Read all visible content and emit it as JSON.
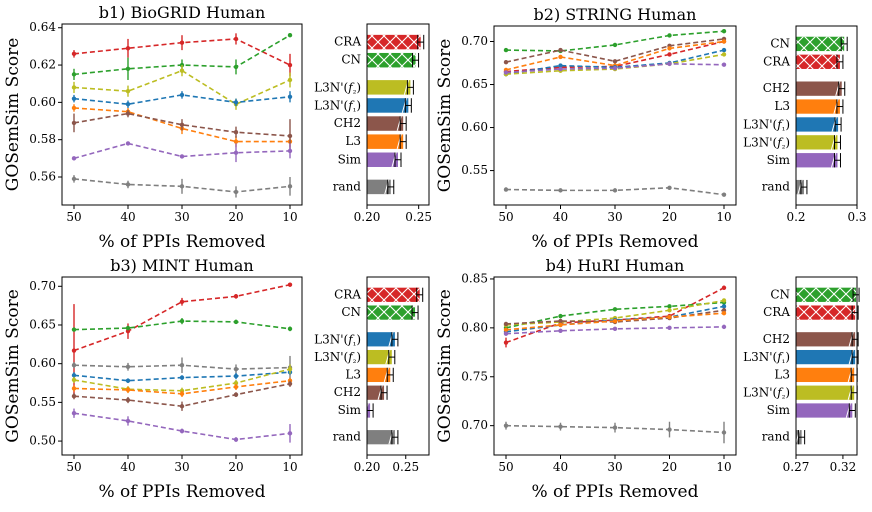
{
  "chart_data": [
    {
      "type": "line",
      "title": "b1) BioGRID Human",
      "xlabel": "% of PPIs Removed",
      "ylabel": "GOSemSim Score",
      "x": [
        50,
        40,
        30,
        20,
        10
      ],
      "x_ticks": [
        "50",
        "40",
        "30",
        "20",
        "10"
      ],
      "ylim": [
        0.545,
        0.642
      ],
      "y_ticks": [
        "0.56",
        "0.58",
        "0.60",
        "0.62",
        "0.64"
      ],
      "series": [
        {
          "color": "#d62728",
          "values": [
            0.626,
            0.629,
            0.632,
            0.634,
            0.62
          ],
          "err": [
            0.002,
            0.005,
            0.004,
            0.003,
            0.006
          ]
        },
        {
          "color": "#2ca02c",
          "values": [
            0.615,
            0.618,
            0.62,
            0.619,
            0.636
          ],
          "err": [
            0.003,
            0.006,
            0.003,
            0.004,
            0.001
          ]
        },
        {
          "color": "#bcbd22",
          "values": [
            0.608,
            0.606,
            0.617,
            0.599,
            0.612
          ],
          "err": [
            0.003,
            0.003,
            0.003,
            0.003,
            0.004
          ]
        },
        {
          "color": "#1f77b4",
          "values": [
            0.602,
            0.599,
            0.604,
            0.6,
            0.603
          ],
          "err": [
            0.002,
            0.002,
            0.002,
            0.002,
            0.003
          ]
        },
        {
          "color": "#ff7f0e",
          "values": [
            0.597,
            0.595,
            0.586,
            0.579,
            0.579
          ],
          "err": [
            0.002,
            0.002,
            0.003,
            0.003,
            0.003
          ]
        },
        {
          "color": "#8c564b",
          "values": [
            0.589,
            0.594,
            0.588,
            0.584,
            0.582
          ],
          "err": [
            0.005,
            0.002,
            0.003,
            0.003,
            0.009
          ]
        },
        {
          "color": "#9467bd",
          "values": [
            0.57,
            0.578,
            0.571,
            0.573,
            0.574
          ],
          "err": [
            0.001,
            0.001,
            0.001,
            0.005,
            0.004
          ]
        },
        {
          "color": "#7f7f7f",
          "values": [
            0.559,
            0.556,
            0.555,
            0.552,
            0.555
          ],
          "err": [
            0.002,
            0.002,
            0.004,
            0.003,
            0.005
          ]
        }
      ],
      "bar": {
        "labels": [
          "CRA",
          "CN",
          "L3N'(f₂)",
          "L3N'(f₁)",
          "CH2",
          "L3",
          "Sim",
          "rand"
        ],
        "label_parts": [
          [
            "CRA",
            ""
          ],
          [
            "CN",
            ""
          ],
          [
            "L3N'(",
            "f",
            "₂",
            ")"
          ],
          [
            "L3N'(",
            "f",
            "₁",
            ")"
          ],
          [
            "CH2",
            ""
          ],
          [
            "L3",
            ""
          ],
          [
            "Sim",
            ""
          ],
          [
            "rand",
            ""
          ]
        ],
        "values": [
          0.252,
          0.247,
          0.242,
          0.24,
          0.235,
          0.235,
          0.23,
          0.223
        ],
        "colors": [
          "#d62728",
          "#2ca02c",
          "#bcbd22",
          "#1f77b4",
          "#8c564b",
          "#ff7f0e",
          "#9467bd",
          "#7f7f7f"
        ],
        "xlim": [
          0.2,
          0.26
        ],
        "x_ticks": [
          "0.20",
          "0.25"
        ],
        "x_tick_values": [
          0.2,
          0.25
        ]
      }
    },
    {
      "type": "line",
      "title": "b2) STRING Human",
      "xlabel": "% of PPIs Removed",
      "ylabel": "GOSemSim Score",
      "x": [
        50,
        40,
        30,
        20,
        10
      ],
      "x_ticks": [
        "50",
        "40",
        "30",
        "20",
        "10"
      ],
      "ylim": [
        0.51,
        0.718
      ],
      "y_ticks": [
        "0.55",
        "0.60",
        "0.65",
        "0.70"
      ],
      "series": [
        {
          "color": "#2ca02c",
          "values": [
            0.69,
            0.689,
            0.696,
            0.707,
            0.712
          ],
          "err": [
            0.001,
            0.001,
            0.001,
            0.001,
            0.001
          ]
        },
        {
          "color": "#d62728",
          "values": [
            0.665,
            0.67,
            0.671,
            0.685,
            0.7
          ],
          "err": [
            0.001,
            0.001,
            0.001,
            0.001,
            0.001
          ]
        },
        {
          "color": "#8c564b",
          "values": [
            0.676,
            0.69,
            0.677,
            0.695,
            0.703
          ],
          "err": [
            0.001,
            0.001,
            0.001,
            0.001,
            0.001
          ]
        },
        {
          "color": "#ff7f0e",
          "values": [
            0.667,
            0.682,
            0.672,
            0.692,
            0.7
          ],
          "err": [
            0.001,
            0.001,
            0.001,
            0.001,
            0.001
          ]
        },
        {
          "color": "#1f77b4",
          "values": [
            0.662,
            0.672,
            0.67,
            0.675,
            0.69
          ],
          "err": [
            0.001,
            0.001,
            0.001,
            0.001,
            0.001
          ]
        },
        {
          "color": "#bcbd22",
          "values": [
            0.662,
            0.666,
            0.668,
            0.674,
            0.685
          ],
          "err": [
            0.001,
            0.001,
            0.001,
            0.001,
            0.001
          ]
        },
        {
          "color": "#9467bd",
          "values": [
            0.664,
            0.668,
            0.669,
            0.674,
            0.673
          ],
          "err": [
            0.001,
            0.001,
            0.001,
            0.001,
            0.001
          ]
        },
        {
          "color": "#7f7f7f",
          "values": [
            0.528,
            0.527,
            0.527,
            0.53,
            0.522
          ],
          "err": [
            0.001,
            0.001,
            0.001,
            0.001,
            0.002
          ]
        }
      ],
      "bar": {
        "labels": [
          "CN",
          "CRA",
          "CH2",
          "L3",
          "L3N'(f₁)",
          "L3N'(f₂)",
          "Sim",
          "rand"
        ],
        "label_parts": [
          [
            "CN",
            ""
          ],
          [
            "CRA",
            ""
          ],
          [
            "CH2",
            ""
          ],
          [
            "L3",
            ""
          ],
          [
            "L3N'(",
            "f",
            "₁",
            ")"
          ],
          [
            "L3N'(",
            "f",
            "₂",
            ")"
          ],
          [
            "Sim",
            ""
          ],
          [
            "rand",
            ""
          ]
        ],
        "values": [
          0.279,
          0.272,
          0.275,
          0.272,
          0.269,
          0.268,
          0.268,
          0.213
        ],
        "colors": [
          "#2ca02c",
          "#d62728",
          "#8c564b",
          "#ff7f0e",
          "#1f77b4",
          "#bcbd22",
          "#9467bd",
          "#7f7f7f"
        ],
        "xlim": [
          0.2,
          0.3
        ],
        "x_ticks": [
          "0.2",
          "0.3"
        ],
        "x_tick_values": [
          0.2,
          0.3
        ]
      }
    },
    {
      "type": "line",
      "title": "b3) MINT Human",
      "xlabel": "% of PPIs Removed",
      "ylabel": "GOSemSim Score",
      "x": [
        50,
        40,
        30,
        20,
        10
      ],
      "x_ticks": [
        "50",
        "40",
        "30",
        "20",
        "10"
      ],
      "ylim": [
        0.482,
        0.712
      ],
      "y_ticks": [
        "0.50",
        "0.55",
        "0.60",
        "0.65",
        "0.70"
      ],
      "series": [
        {
          "color": "#d62728",
          "values": [
            0.617,
            0.642,
            0.68,
            0.687,
            0.702
          ],
          "err": [
            0.06,
            0.01,
            0.005,
            0.003,
            0.002
          ]
        },
        {
          "color": "#2ca02c",
          "values": [
            0.644,
            0.646,
            0.655,
            0.654,
            0.645
          ],
          "err": [
            0.002,
            0.003,
            0.004,
            0.002,
            0.003
          ]
        },
        {
          "color": "#7f7f7f",
          "values": [
            0.598,
            0.596,
            0.598,
            0.593,
            0.595
          ],
          "err": [
            0.004,
            0.005,
            0.01,
            0.006,
            0.015
          ]
        },
        {
          "color": "#1f77b4",
          "values": [
            0.585,
            0.578,
            0.582,
            0.584,
            0.589
          ],
          "err": [
            0.004,
            0.003,
            0.003,
            0.004,
            0.003
          ]
        },
        {
          "color": "#bcbd22",
          "values": [
            0.579,
            0.567,
            0.565,
            0.575,
            0.593
          ],
          "err": [
            0.004,
            0.004,
            0.004,
            0.004,
            0.006
          ]
        },
        {
          "color": "#ff7f0e",
          "values": [
            0.568,
            0.566,
            0.561,
            0.57,
            0.578
          ],
          "err": [
            0.004,
            0.004,
            0.004,
            0.004,
            0.004
          ]
        },
        {
          "color": "#8c564b",
          "values": [
            0.558,
            0.553,
            0.545,
            0.56,
            0.574
          ],
          "err": [
            0.004,
            0.004,
            0.006,
            0.003,
            0.004
          ]
        },
        {
          "color": "#9467bd",
          "values": [
            0.536,
            0.526,
            0.513,
            0.502,
            0.51
          ],
          "err": [
            0.006,
            0.006,
            0.003,
            0.003,
            0.012
          ]
        }
      ],
      "bar": {
        "labels": [
          "CRA",
          "CN",
          "L3N'(f₁)",
          "L3N'(f₂)",
          "L3",
          "CH2",
          "Sim",
          "rand"
        ],
        "label_parts": [
          [
            "CRA",
            ""
          ],
          [
            "CN",
            ""
          ],
          [
            "L3N'(",
            "f",
            "₁",
            ")"
          ],
          [
            "L3N'(",
            "f",
            "₂",
            ")"
          ],
          [
            "L3",
            ""
          ],
          [
            "CH2",
            ""
          ],
          [
            "Sim",
            ""
          ],
          [
            "rand",
            ""
          ]
        ],
        "values": [
          0.268,
          0.262,
          0.236,
          0.232,
          0.23,
          0.222,
          0.204,
          0.236
        ],
        "colors": [
          "#d62728",
          "#2ca02c",
          "#1f77b4",
          "#bcbd22",
          "#ff7f0e",
          "#8c564b",
          "#9467bd",
          "#7f7f7f"
        ],
        "xlim": [
          0.2,
          0.28
        ],
        "x_ticks": [
          "0.20",
          "0.25"
        ],
        "x_tick_values": [
          0.2,
          0.25
        ]
      }
    },
    {
      "type": "line",
      "title": "b4) HuRI Human",
      "xlabel": "% of PPIs Removed",
      "ylabel": "GOSemSim Score",
      "x": [
        50,
        40,
        30,
        20,
        10
      ],
      "x_ticks": [
        "50",
        "40",
        "30",
        "20",
        "10"
      ],
      "ylim": [
        0.67,
        0.852
      ],
      "y_ticks": [
        "0.70",
        "0.75",
        "0.80",
        "0.85"
      ],
      "series": [
        {
          "color": "#d62728",
          "values": [
            0.785,
            0.805,
            0.808,
            0.812,
            0.841
          ],
          "err": [
            0.005,
            0.002,
            0.001,
            0.001,
            0.001
          ]
        },
        {
          "color": "#2ca02c",
          "values": [
            0.8,
            0.812,
            0.819,
            0.822,
            0.826
          ],
          "err": [
            0.002,
            0.002,
            0.001,
            0.001,
            0.001
          ]
        },
        {
          "color": "#bcbd22",
          "values": [
            0.803,
            0.806,
            0.81,
            0.818,
            0.828
          ],
          "err": [
            0.002,
            0.002,
            0.001,
            0.001,
            0.001
          ]
        },
        {
          "color": "#1f77b4",
          "values": [
            0.796,
            0.803,
            0.808,
            0.811,
            0.822
          ],
          "err": [
            0.002,
            0.002,
            0.001,
            0.001,
            0.001
          ]
        },
        {
          "color": "#8c564b",
          "values": [
            0.804,
            0.807,
            0.806,
            0.81,
            0.818
          ],
          "err": [
            0.002,
            0.002,
            0.001,
            0.001,
            0.001
          ]
        },
        {
          "color": "#ff7f0e",
          "values": [
            0.798,
            0.803,
            0.807,
            0.811,
            0.815
          ],
          "err": [
            0.002,
            0.002,
            0.001,
            0.001,
            0.001
          ]
        },
        {
          "color": "#9467bd",
          "values": [
            0.794,
            0.797,
            0.799,
            0.8,
            0.801
          ],
          "err": [
            0.002,
            0.002,
            0.001,
            0.001,
            0.001
          ]
        },
        {
          "color": "#7f7f7f",
          "values": [
            0.7,
            0.699,
            0.698,
            0.696,
            0.693
          ],
          "err": [
            0.004,
            0.004,
            0.005,
            0.008,
            0.011
          ]
        }
      ],
      "bar": {
        "labels": [
          "CN",
          "CRA",
          "CH2",
          "L3N'(f₁)",
          "L3",
          "L3N'(f₂)",
          "Sim",
          "rand"
        ],
        "label_parts": [
          [
            "CN",
            ""
          ],
          [
            "CRA",
            ""
          ],
          [
            "CH2",
            ""
          ],
          [
            "L3N'(",
            "f",
            "₁",
            ")"
          ],
          [
            "L3",
            ""
          ],
          [
            "L3N'(",
            "f",
            "₂",
            ")"
          ],
          [
            "Sim",
            ""
          ],
          [
            "rand",
            ""
          ]
        ],
        "values": [
          0.334,
          0.333,
          0.333,
          0.333,
          0.332,
          0.332,
          0.33,
          0.276
        ],
        "colors": [
          "#2ca02c",
          "#d62728",
          "#8c564b",
          "#1f77b4",
          "#ff7f0e",
          "#bcbd22",
          "#9467bd",
          "#7f7f7f"
        ],
        "xlim": [
          0.27,
          0.335
        ],
        "x_ticks": [
          "0.27",
          "0.32"
        ],
        "x_tick_values": [
          0.27,
          0.32
        ]
      }
    }
  ]
}
